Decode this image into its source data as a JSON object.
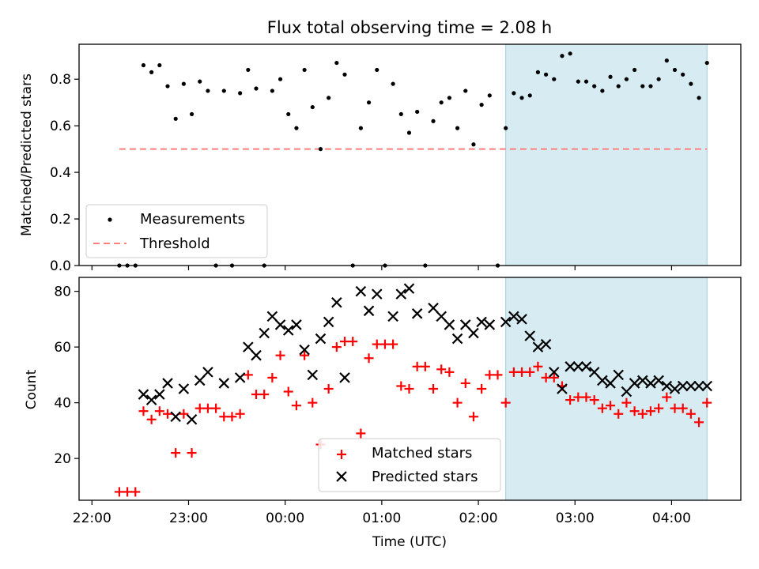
{
  "chart_data": [
    {
      "type": "scatter",
      "title": "Flux total observing time = 2.08 h",
      "xlabel": "",
      "ylabel": "Matched/Predicted stars",
      "ylim": [
        0,
        0.95
      ],
      "xlim": [
        "21:52",
        "04:43"
      ],
      "yticks": [
        "0.0",
        "0.2",
        "0.4",
        "0.6",
        "0.8"
      ],
      "ytick_values": [
        0,
        0.2,
        0.4,
        0.6,
        0.8
      ],
      "highlight_span": {
        "start": "02:17",
        "end": "04:22",
        "color": "#add8e6"
      },
      "threshold": {
        "name": "Threshold",
        "value": 0.5,
        "start": "22:17",
        "end": "04:22",
        "color": "#ff7f7f",
        "style": "dashed"
      },
      "legend": {
        "position": "lower-left",
        "entries": [
          "Measurements",
          "Threshold"
        ]
      },
      "series": [
        {
          "name": "Measurements",
          "marker": "dot",
          "color": "#000000",
          "x": [
            "22:17",
            "22:22",
            "22:27",
            "22:32",
            "22:37",
            "22:42",
            "22:47",
            "22:52",
            "22:57",
            "23:02",
            "23:07",
            "23:12",
            "23:17",
            "23:22",
            "23:27",
            "23:32",
            "23:37",
            "23:42",
            "23:47",
            "23:52",
            "23:57",
            "00:02",
            "00:07",
            "00:12",
            "00:17",
            "00:22",
            "00:27",
            "00:32",
            "00:37",
            "00:42",
            "00:47",
            "00:52",
            "00:57",
            "01:02",
            "01:07",
            "01:12",
            "01:17",
            "01:22",
            "01:27",
            "01:32",
            "01:37",
            "01:42",
            "01:47",
            "01:52",
            "01:57",
            "02:02",
            "02:07",
            "02:12",
            "02:17",
            "02:22",
            "02:27",
            "02:32",
            "02:37",
            "02:42",
            "02:47",
            "02:52",
            "02:57",
            "03:02",
            "03:07",
            "03:12",
            "03:17",
            "03:22",
            "03:27",
            "03:32",
            "03:37",
            "03:42",
            "03:47",
            "03:52",
            "03:57",
            "04:02",
            "04:07",
            "04:12",
            "04:17",
            "04:22"
          ],
          "y": [
            0,
            0,
            0,
            0.86,
            0.83,
            0.86,
            0.77,
            0.63,
            0.78,
            0.65,
            0.79,
            0.75,
            0,
            0.75,
            0,
            0.74,
            0.84,
            0.76,
            0,
            0.75,
            0.8,
            0.65,
            0.59,
            0.84,
            0.68,
            0.5,
            0.72,
            0.87,
            0.82,
            0,
            0.59,
            0.7,
            0.84,
            0,
            0.78,
            0.65,
            0.57,
            0.66,
            0,
            0.62,
            0.7,
            0.72,
            0.59,
            0.75,
            0.52,
            0.69,
            0.73,
            0,
            0.59,
            0.74,
            0.72,
            0.73,
            0.83,
            0.82,
            0.8,
            0.9,
            0.91,
            0.79,
            0.79,
            0.77,
            0.75,
            0.81,
            0.77,
            0.8,
            0.84,
            0.77,
            0.77,
            0.8,
            0.88,
            0.84,
            0.82,
            0.78,
            0.72,
            0.87
          ]
        }
      ]
    },
    {
      "type": "scatter",
      "title": "",
      "xlabel": "Time (UTC)",
      "ylabel": "Count",
      "ylim": [
        5,
        85
      ],
      "xlim": [
        "21:52",
        "04:43"
      ],
      "yticks": [
        "20",
        "40",
        "60",
        "80"
      ],
      "ytick_values": [
        20,
        40,
        60,
        80
      ],
      "xticks": [
        "22:00",
        "23:00",
        "00:00",
        "01:00",
        "02:00",
        "03:00",
        "04:00"
      ],
      "highlight_span": {
        "start": "02:17",
        "end": "04:22",
        "color": "#add8e6"
      },
      "legend": {
        "position": "lower-center",
        "entries": [
          "Matched stars",
          "Predicted stars"
        ]
      },
      "series": [
        {
          "name": "Matched stars",
          "marker": "plus",
          "color": "#ff0000",
          "x": [
            "22:17",
            "22:22",
            "22:27",
            "22:32",
            "22:37",
            "22:42",
            "22:47",
            "22:52",
            "22:57",
            "23:02",
            "23:07",
            "23:12",
            "23:17",
            "23:22",
            "23:27",
            "23:32",
            "23:37",
            "23:42",
            "23:47",
            "23:52",
            "23:57",
            "00:02",
            "00:07",
            "00:12",
            "00:17",
            "00:22",
            "00:27",
            "00:32",
            "00:37",
            "00:42",
            "00:47",
            "00:52",
            "00:57",
            "01:02",
            "01:07",
            "01:12",
            "01:17",
            "01:22",
            "01:27",
            "01:32",
            "01:37",
            "01:42",
            "01:47",
            "01:52",
            "01:57",
            "02:02",
            "02:07",
            "02:12",
            "02:17",
            "02:22",
            "02:27",
            "02:32",
            "02:37",
            "02:42",
            "02:47",
            "02:52",
            "02:57",
            "03:02",
            "03:07",
            "03:12",
            "03:17",
            "03:22",
            "03:27",
            "03:32",
            "03:37",
            "03:42",
            "03:47",
            "03:52",
            "03:57",
            "04:02",
            "04:07",
            "04:12",
            "04:17",
            "04:22"
          ],
          "y": [
            8,
            8,
            8,
            37,
            34,
            37,
            36,
            22,
            36,
            22,
            38,
            38,
            38,
            35,
            35,
            36,
            50,
            43,
            43,
            49,
            57,
            44,
            39,
            57,
            40,
            25,
            45,
            60,
            62,
            62,
            29,
            56,
            61,
            61,
            61,
            46,
            45,
            53,
            53,
            45,
            52,
            51,
            40,
            47,
            35,
            45,
            50,
            50,
            40,
            51,
            51,
            51,
            53,
            49,
            49,
            46,
            41,
            42,
            42,
            41,
            38,
            39,
            36,
            40,
            37,
            36,
            37,
            38,
            42,
            38,
            38,
            36,
            33,
            40
          ]
        },
        {
          "name": "Predicted stars",
          "marker": "x",
          "color": "#000000",
          "x": [
            "22:32",
            "22:37",
            "22:42",
            "22:47",
            "22:52",
            "22:57",
            "23:02",
            "23:07",
            "23:12",
            "23:22",
            "23:32",
            "23:37",
            "23:42",
            "23:47",
            "23:52",
            "23:57",
            "00:02",
            "00:07",
            "00:12",
            "00:17",
            "00:22",
            "00:27",
            "00:32",
            "00:37",
            "00:47",
            "00:52",
            "00:57",
            "01:07",
            "01:12",
            "01:17",
            "01:22",
            "01:32",
            "01:37",
            "01:42",
            "01:47",
            "01:52",
            "01:57",
            "02:02",
            "02:07",
            "02:17",
            "02:22",
            "02:27",
            "02:32",
            "02:37",
            "02:42",
            "02:47",
            "02:52",
            "02:57",
            "03:02",
            "03:07",
            "03:12",
            "03:17",
            "03:22",
            "03:27",
            "03:32",
            "03:37",
            "03:42",
            "03:47",
            "03:52",
            "03:57",
            "04:02",
            "04:07",
            "04:12",
            "04:17",
            "04:22"
          ],
          "y": [
            43,
            41,
            43,
            47,
            35,
            45,
            34,
            48,
            51,
            47,
            49,
            60,
            57,
            65,
            71,
            68,
            66,
            68,
            59,
            50,
            63,
            69,
            76,
            49,
            80,
            73,
            79,
            71,
            79,
            81,
            72,
            74,
            71,
            68,
            63,
            68,
            65,
            69,
            68,
            69,
            71,
            70,
            64,
            60,
            61,
            51,
            45,
            53,
            53,
            53,
            51,
            48,
            47,
            50,
            44,
            47,
            48,
            47,
            48,
            46,
            45,
            46,
            46,
            46,
            46
          ]
        }
      ]
    }
  ]
}
